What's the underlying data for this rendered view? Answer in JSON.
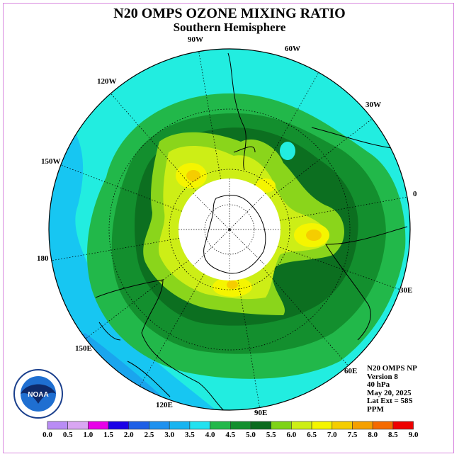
{
  "title": "N20 OMPS OZONE MIXING RATIO",
  "subtitle": "Southern Hemisphere",
  "longitude_labels": {
    "w90": "90W",
    "w60": "60W",
    "w120": "120W",
    "w30": "30W",
    "w150": "150W",
    "e0": "0",
    "e180": "180",
    "e30": "30E",
    "e150": "150E",
    "e60": "60E",
    "e120": "120E",
    "e90": "90E"
  },
  "info": {
    "line1": "N20 OMPS NP",
    "line2": "Version 8",
    "line3": "40 hPa",
    "line4": "May 20, 2025",
    "line5": "Lat Ext = 58S",
    "line6": "PPM"
  },
  "logo_text": "NOAA",
  "legend": {
    "ticks": [
      "0.0",
      "0.5",
      "1.0",
      "1.5",
      "2.0",
      "2.5",
      "3.0",
      "3.5",
      "4.0",
      "4.5",
      "5.0",
      "5.5",
      "6.0",
      "6.5",
      "7.0",
      "7.5",
      "8.0",
      "8.5",
      "9.0"
    ],
    "colors": [
      "#b98cf5",
      "#d9a6f2",
      "#e800e8",
      "#1a00e6",
      "#1e5fe6",
      "#1f91ef",
      "#17b4f0",
      "#22e2f0",
      "#22b84a",
      "#138f2e",
      "#0b6b1e",
      "#7ed317",
      "#cdee16",
      "#f5f500",
      "#f5cd00",
      "#f5a000",
      "#f56a00",
      "#ee0000",
      "#8c5a3c"
    ]
  }
}
